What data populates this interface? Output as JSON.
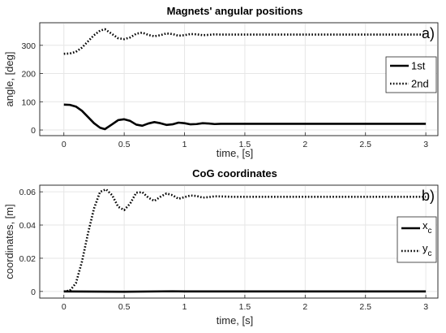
{
  "chart_data": [
    {
      "type": "line",
      "panel": "a)",
      "title": "Magnets' angular positions",
      "xlabel": "time, [s]",
      "ylabel": "angle, [deg]",
      "xlim": [
        -0.2,
        3.1
      ],
      "ylim": [
        -20,
        380
      ],
      "xticks": [
        0,
        0.5,
        1,
        1.5,
        2,
        2.5,
        3
      ],
      "xtick_labels": [
        "0",
        "0.5",
        "1",
        "1.5",
        "2",
        "2.5",
        "3"
      ],
      "yticks": [
        0,
        100,
        200,
        300
      ],
      "ytick_labels": [
        "0",
        "100",
        "200",
        "300"
      ],
      "grid": true,
      "legend_position": "right",
      "series": [
        {
          "name": "1st",
          "style": "solid",
          "x": [
            0,
            0.05,
            0.1,
            0.15,
            0.2,
            0.25,
            0.3,
            0.34,
            0.4,
            0.45,
            0.5,
            0.55,
            0.6,
            0.65,
            0.7,
            0.75,
            0.8,
            0.85,
            0.9,
            0.95,
            1.0,
            1.05,
            1.1,
            1.15,
            1.2,
            1.25,
            1.3,
            1.4,
            1.5,
            2.0,
            2.5,
            3.0
          ],
          "y": [
            90,
            89,
            83,
            68,
            46,
            24,
            8,
            3,
            20,
            35,
            38,
            32,
            19,
            15,
            23,
            28,
            24,
            18,
            20,
            26,
            24,
            20,
            21,
            24,
            23,
            21,
            22,
            22,
            22,
            22,
            22,
            22
          ]
        },
        {
          "name": "2nd",
          "style": "dotted",
          "x": [
            0,
            0.05,
            0.1,
            0.15,
            0.2,
            0.25,
            0.3,
            0.34,
            0.4,
            0.45,
            0.5,
            0.55,
            0.6,
            0.65,
            0.7,
            0.75,
            0.8,
            0.85,
            0.9,
            0.95,
            1.0,
            1.05,
            1.1,
            1.15,
            1.2,
            1.25,
            1.3,
            1.4,
            1.5,
            2.0,
            2.5,
            3.0
          ],
          "y": [
            270,
            271,
            277,
            292,
            314,
            336,
            352,
            357,
            340,
            325,
            322,
            328,
            341,
            345,
            337,
            332,
            336,
            342,
            340,
            334,
            336,
            340,
            339,
            336,
            337,
            339,
            338,
            338,
            338,
            338,
            338,
            338
          ]
        }
      ]
    },
    {
      "type": "line",
      "panel": "b)",
      "title": "CoG coordinates",
      "xlabel": "time, [s]",
      "ylabel": "coordinates, [m]",
      "xlim": [
        -0.2,
        3.1
      ],
      "ylim": [
        -0.004,
        0.064
      ],
      "xticks": [
        0,
        0.5,
        1,
        1.5,
        2,
        2.5,
        3
      ],
      "xtick_labels": [
        "0",
        "0.5",
        "1",
        "1.5",
        "2",
        "2.5",
        "3"
      ],
      "yticks": [
        0,
        0.02,
        0.04,
        0.06
      ],
      "ytick_labels": [
        "0",
        "0.02",
        "0.04",
        "0.06"
      ],
      "grid": true,
      "legend_position": "right",
      "series": [
        {
          "name": "x",
          "name_subscript": "c",
          "style": "solid",
          "x": [
            0,
            0.5,
            0.9,
            1.0,
            1.5,
            2.0,
            2.5,
            3.0
          ],
          "y": [
            0.0,
            -0.0002,
            0.0001,
            0.0,
            0.0,
            0.0,
            0.0,
            0.0
          ]
        },
        {
          "name": "y",
          "name_subscript": "c",
          "style": "dotted",
          "x": [
            0,
            0.05,
            0.1,
            0.15,
            0.2,
            0.25,
            0.3,
            0.35,
            0.4,
            0.45,
            0.5,
            0.55,
            0.6,
            0.65,
            0.7,
            0.75,
            0.8,
            0.85,
            0.9,
            0.95,
            1.0,
            1.05,
            1.1,
            1.15,
            1.2,
            1.25,
            1.3,
            1.4,
            1.5,
            2.0,
            2.5,
            3.0
          ],
          "y": [
            0.0,
            0.0005,
            0.005,
            0.018,
            0.035,
            0.05,
            0.06,
            0.0615,
            0.058,
            0.051,
            0.049,
            0.053,
            0.0595,
            0.0598,
            0.0565,
            0.0545,
            0.057,
            0.059,
            0.058,
            0.0558,
            0.0568,
            0.0578,
            0.0575,
            0.0565,
            0.0568,
            0.0573,
            0.0572,
            0.057,
            0.057,
            0.057,
            0.057,
            0.057
          ]
        }
      ]
    }
  ]
}
